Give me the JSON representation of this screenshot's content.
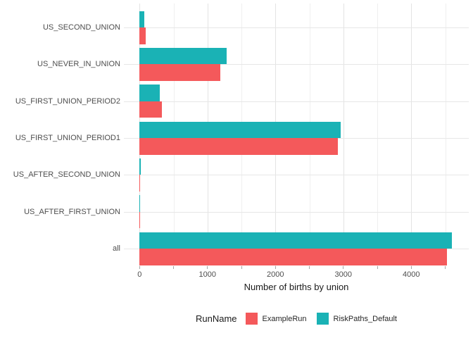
{
  "chart_data": {
    "type": "bar",
    "orientation": "horizontal",
    "title": "",
    "xlabel": "Number of births by union",
    "ylabel": "",
    "legend_title": "RunName",
    "legend_position": "bottom",
    "grid": true,
    "categories": [
      "US_SECOND_UNION",
      "US_NEVER_IN_UNION",
      "US_FIRST_UNION_PERIOD2",
      "US_FIRST_UNION_PERIOD1",
      "US_AFTER_SECOND_UNION",
      "US_AFTER_FIRST_UNION",
      "all"
    ],
    "series": [
      {
        "name": "ExampleRun",
        "color": "#f4595b",
        "values": [
          90,
          1190,
          330,
          2920,
          10,
          8,
          4530
        ]
      },
      {
        "name": "RiskPaths_Default",
        "color": "#1ab2b5",
        "values": [
          70,
          1280,
          295,
          2960,
          15,
          10,
          4600
        ]
      }
    ],
    "x_ticks_labeled": [
      0,
      1000,
      2000,
      3000,
      4000
    ],
    "x_tick_minor_step": 500,
    "x_axis_range": [
      -230,
      4830
    ],
    "colors": {
      "grid_major": "#e3e3e3",
      "grid_minor": "#efefef",
      "axis_text": "#4d4d4d",
      "title_text": "#1a1a1a",
      "tick_mark": "#a6a6a6",
      "background": "#ffffff"
    }
  }
}
